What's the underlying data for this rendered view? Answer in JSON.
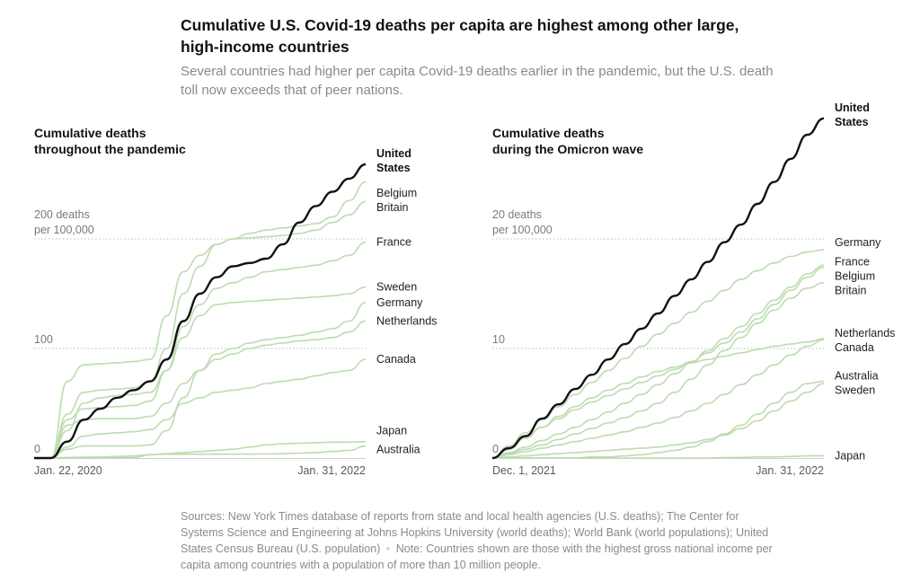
{
  "header": {
    "title": "Cumulative U.S. Covid-19 deaths per capita are highest among other large, high-income countries",
    "subtitle": "Several countries had higher per capita Covid-19 deaths earlier in the pandemic, but the U.S. death toll now exceeds that of peer nations."
  },
  "colors": {
    "highlight": "#121212",
    "other": "#bcdcb0",
    "grid": "#bdbdbd"
  },
  "chart_data": [
    {
      "type": "line",
      "title": "Cumulative deaths throughout the pandemic",
      "title_lines": [
        "Cumulative deaths",
        "throughout the pandemic"
      ],
      "ylabel_lines": [
        "200 deaths",
        "per 100,000"
      ],
      "ylim": [
        0,
        280
      ],
      "yticks": [
        {
          "value": 0,
          "label": "0"
        },
        {
          "value": 100,
          "label": "100"
        },
        {
          "value": 200,
          "label": "200 deaths"
        }
      ],
      "x_start_label": "Jan. 22, 2020",
      "x_end_label": "Jan. 31, 2022",
      "x": [
        0,
        0.05,
        0.1,
        0.15,
        0.2,
        0.25,
        0.3,
        0.35,
        0.4,
        0.45,
        0.5,
        0.55,
        0.6,
        0.65,
        0.7,
        0.75,
        0.8,
        0.85,
        0.9,
        0.95,
        1.0
      ],
      "series": [
        {
          "name": "Japan",
          "highlight": false,
          "label_offset": -12,
          "values": [
            0,
            0,
            0.5,
            0.8,
            1,
            1.5,
            2,
            3,
            4,
            5,
            6,
            7,
            8,
            10,
            12,
            13,
            13.5,
            14,
            14.5,
            14.5,
            15
          ]
        },
        {
          "name": "Australia",
          "highlight": false,
          "label_offset": 4,
          "values": [
            0,
            0,
            0.4,
            0.4,
            0.4,
            0.5,
            0.5,
            3,
            3.5,
            3.5,
            3.5,
            3.5,
            3.6,
            3.6,
            3.8,
            4,
            4.5,
            5,
            6,
            7,
            11
          ]
        },
        {
          "name": "Canada",
          "highlight": false,
          "label_offset": 0,
          "values": [
            0,
            0,
            10,
            20,
            22,
            23,
            24,
            26,
            35,
            50,
            55,
            60,
            62,
            64,
            68,
            70,
            72,
            75,
            78,
            80,
            90
          ]
        },
        {
          "name": "Netherlands",
          "highlight": false,
          "label_offset": 0,
          "values": [
            0,
            0,
            30,
            35,
            36,
            36,
            36,
            38,
            50,
            68,
            80,
            90,
            95,
            100,
            103,
            105,
            107,
            108,
            110,
            115,
            125
          ]
        },
        {
          "name": "Germany",
          "highlight": false,
          "label_offset": 0,
          "values": [
            0,
            0,
            8,
            11,
            11,
            11,
            11,
            12,
            25,
            55,
            80,
            95,
            100,
            105,
            108,
            110,
            112,
            115,
            118,
            125,
            142
          ]
        },
        {
          "name": "Sweden",
          "highlight": false,
          "label_offset": 0,
          "values": [
            0,
            0,
            25,
            50,
            55,
            57,
            58,
            60,
            80,
            110,
            130,
            140,
            142,
            143,
            144,
            145,
            146,
            147,
            148,
            150,
            156
          ]
        },
        {
          "name": "France",
          "highlight": false,
          "label_offset": 0,
          "values": [
            0,
            0,
            35,
            45,
            46,
            47,
            48,
            52,
            80,
            120,
            140,
            155,
            160,
            165,
            170,
            172,
            174,
            176,
            180,
            185,
            197
          ]
        },
        {
          "name": "Britain",
          "highlight": false,
          "label_offset": 0,
          "values": [
            0,
            0,
            40,
            60,
            62,
            63,
            64,
            70,
            100,
            150,
            175,
            195,
            200,
            201,
            202,
            203,
            205,
            208,
            215,
            222,
            234
          ]
        },
        {
          "name": "Belgium",
          "highlight": false,
          "label_offset": 0,
          "values": [
            0,
            0,
            70,
            85,
            86,
            87,
            88,
            90,
            130,
            170,
            185,
            195,
            200,
            205,
            208,
            210,
            212,
            214,
            220,
            235,
            252
          ]
        },
        {
          "name": "United States",
          "highlight": true,
          "label_offset": 0,
          "label_lines": [
            "United",
            "States"
          ],
          "values": [
            0,
            0,
            15,
            35,
            45,
            55,
            62,
            70,
            90,
            125,
            150,
            165,
            175,
            178,
            182,
            195,
            215,
            230,
            243,
            255,
            268
          ]
        }
      ]
    },
    {
      "type": "line",
      "title": "Cumulative deaths during the Omicron wave",
      "title_lines": [
        "Cumulative deaths",
        "during the Omicron wave"
      ],
      "ylabel_lines": [
        "20 deaths",
        "per 100,000"
      ],
      "ylim": [
        0,
        31
      ],
      "yticks": [
        {
          "value": 0,
          "label": "0"
        },
        {
          "value": 10,
          "label": "10"
        },
        {
          "value": 20,
          "label": "20 deaths"
        }
      ],
      "x_start_label": "Dec. 1, 2021",
      "x_end_label": "Jan. 31, 2022",
      "x": [
        0,
        0.05,
        0.1,
        0.15,
        0.2,
        0.25,
        0.3,
        0.35,
        0.4,
        0.45,
        0.5,
        0.55,
        0.6,
        0.65,
        0.7,
        0.75,
        0.8,
        0.85,
        0.9,
        0.95,
        1.0
      ],
      "series": [
        {
          "name": "Japan",
          "highlight": false,
          "label_offset": 0,
          "values": [
            0,
            0,
            0,
            0,
            0,
            0,
            0,
            0,
            0,
            0,
            0,
            0,
            0,
            0,
            0.05,
            0.05,
            0.1,
            0.1,
            0.15,
            0.2,
            0.2
          ]
        },
        {
          "name": "Sweden",
          "highlight": false,
          "label_offset": 4,
          "values": [
            0,
            0.1,
            0.2,
            0.3,
            0.4,
            0.5,
            0.6,
            0.7,
            0.8,
            0.9,
            1.0,
            1.2,
            1.4,
            1.7,
            2.1,
            2.7,
            3.4,
            4.3,
            5.2,
            6.0,
            6.8
          ]
        },
        {
          "name": "Australia",
          "highlight": false,
          "label_offset": -6,
          "values": [
            0,
            0,
            0,
            0,
            0,
            0,
            0.1,
            0.1,
            0.2,
            0.3,
            0.5,
            0.7,
            1.0,
            1.5,
            2.2,
            3.0,
            4.0,
            5.0,
            6.0,
            6.8,
            7.0
          ]
        },
        {
          "name": "Canada",
          "highlight": false,
          "label_offset": 4,
          "values": [
            0,
            0.3,
            0.6,
            0.9,
            1.2,
            1.5,
            1.8,
            2.1,
            2.4,
            2.8,
            3.2,
            3.7,
            4.3,
            5.0,
            5.8,
            6.7,
            7.6,
            8.5,
            9.4,
            10.2,
            10.8
          ]
        },
        {
          "name": "Netherlands",
          "highlight": false,
          "label_offset": -6,
          "values": [
            0,
            0.8,
            1.8,
            2.8,
            3.8,
            4.7,
            5.5,
            6.2,
            6.8,
            7.4,
            7.9,
            8.3,
            8.7,
            9.0,
            9.3,
            9.6,
            9.9,
            10.2,
            10.4,
            10.6,
            10.9
          ]
        },
        {
          "name": "Britain",
          "highlight": false,
          "label_offset": 4,
          "values": [
            0,
            0.4,
            0.8,
            1.2,
            1.7,
            2.2,
            2.7,
            3.2,
            3.7,
            4.3,
            5.0,
            6.0,
            7.2,
            8.5,
            9.8,
            11.0,
            12.3,
            13.5,
            14.6,
            15.5,
            16.0
          ]
        },
        {
          "name": "Belgium",
          "highlight": false,
          "label_offset": 4,
          "values": [
            0,
            0.9,
            1.9,
            2.8,
            3.6,
            4.4,
            5.1,
            5.7,
            6.3,
            6.9,
            7.5,
            8.1,
            8.8,
            9.6,
            10.5,
            11.5,
            12.7,
            14.0,
            15.3,
            16.5,
            17.4
          ]
        },
        {
          "name": "France",
          "highlight": false,
          "label_offset": -4,
          "values": [
            0,
            0.5,
            1.0,
            1.6,
            2.2,
            2.8,
            3.5,
            4.2,
            5.0,
            5.8,
            6.7,
            7.7,
            8.7,
            9.8,
            10.9,
            12.0,
            13.2,
            14.4,
            15.6,
            16.8,
            17.6
          ]
        },
        {
          "name": "Germany",
          "highlight": false,
          "label_offset": -8,
          "values": [
            0,
            1.1,
            2.3,
            3.5,
            4.7,
            5.8,
            6.9,
            8.0,
            9.1,
            10.2,
            11.3,
            12.3,
            13.3,
            14.3,
            15.3,
            16.3,
            17.1,
            17.8,
            18.4,
            18.8,
            19.0
          ]
        },
        {
          "name": "United States",
          "highlight": true,
          "label_offset": 0,
          "label_lines": [
            "United",
            "States"
          ],
          "values": [
            0,
            0.9,
            2.0,
            3.6,
            4.9,
            6.3,
            7.6,
            9.0,
            10.4,
            11.8,
            13.2,
            14.8,
            16.3,
            17.9,
            19.7,
            21.3,
            23.2,
            25.2,
            27.3,
            29.5,
            31.0
          ]
        }
      ]
    }
  ],
  "footer": {
    "sources": "Sources: New York Times database of reports from state and local health agencies (U.S. deaths); The Center for Systems Science and Engineering at Johns Hopkins University (world deaths); World Bank (world populations); United States Census Bureau (U.S. population)",
    "separator": "•",
    "note": "Note: Countries shown are those with the highest gross national income per capita among countries with a population of more than 10 million people."
  }
}
